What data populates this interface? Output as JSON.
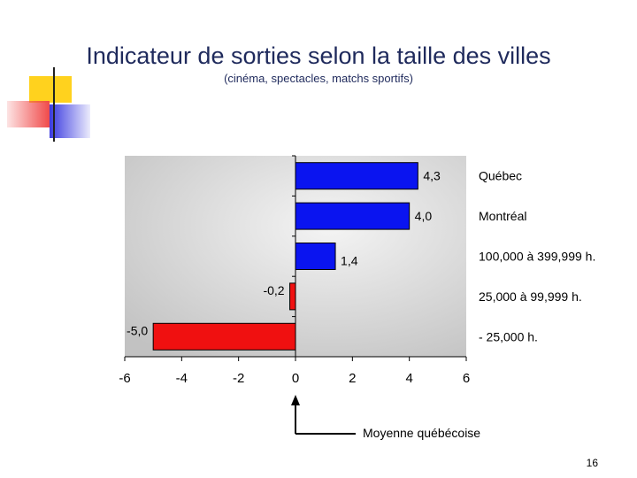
{
  "slide": {
    "title": "Indicateur de sorties selon la taille des villes",
    "subtitle": "(cinéma, spectacles, matchs sportifs)",
    "reference_label": "Moyenne québécoise",
    "page_number": "16"
  },
  "colors": {
    "title": "#1f2a5c",
    "positive_bar": "#0a14f0",
    "negative_bar": "#f01010",
    "plot_bg": "#c8c8c8",
    "deco_yellow": "#ffd21e",
    "deco_red": "#f04a4a",
    "deco_blue": "#3a3ae0"
  },
  "chart_data": {
    "type": "bar",
    "orientation": "horizontal",
    "categories": [
      "Québec",
      "Montréal",
      "100,000 à 399,999 h.",
      "25,000 à 99,999 h.",
      "- 25,000 h."
    ],
    "values": [
      4.3,
      4.0,
      1.4,
      -0.2,
      -5.0
    ],
    "value_labels": [
      "4,3",
      "4,0",
      "1,4",
      "-0,2",
      "-5,0"
    ],
    "xlim": [
      -6,
      6
    ],
    "xticks": [
      -6,
      -4,
      -2,
      0,
      2,
      4,
      6
    ],
    "xtick_labels": [
      "-6",
      "-4",
      "-2",
      "0",
      "2",
      "4",
      "6"
    ],
    "title": "",
    "xlabel": "",
    "ylabel": "",
    "grid": false,
    "legend": false
  }
}
